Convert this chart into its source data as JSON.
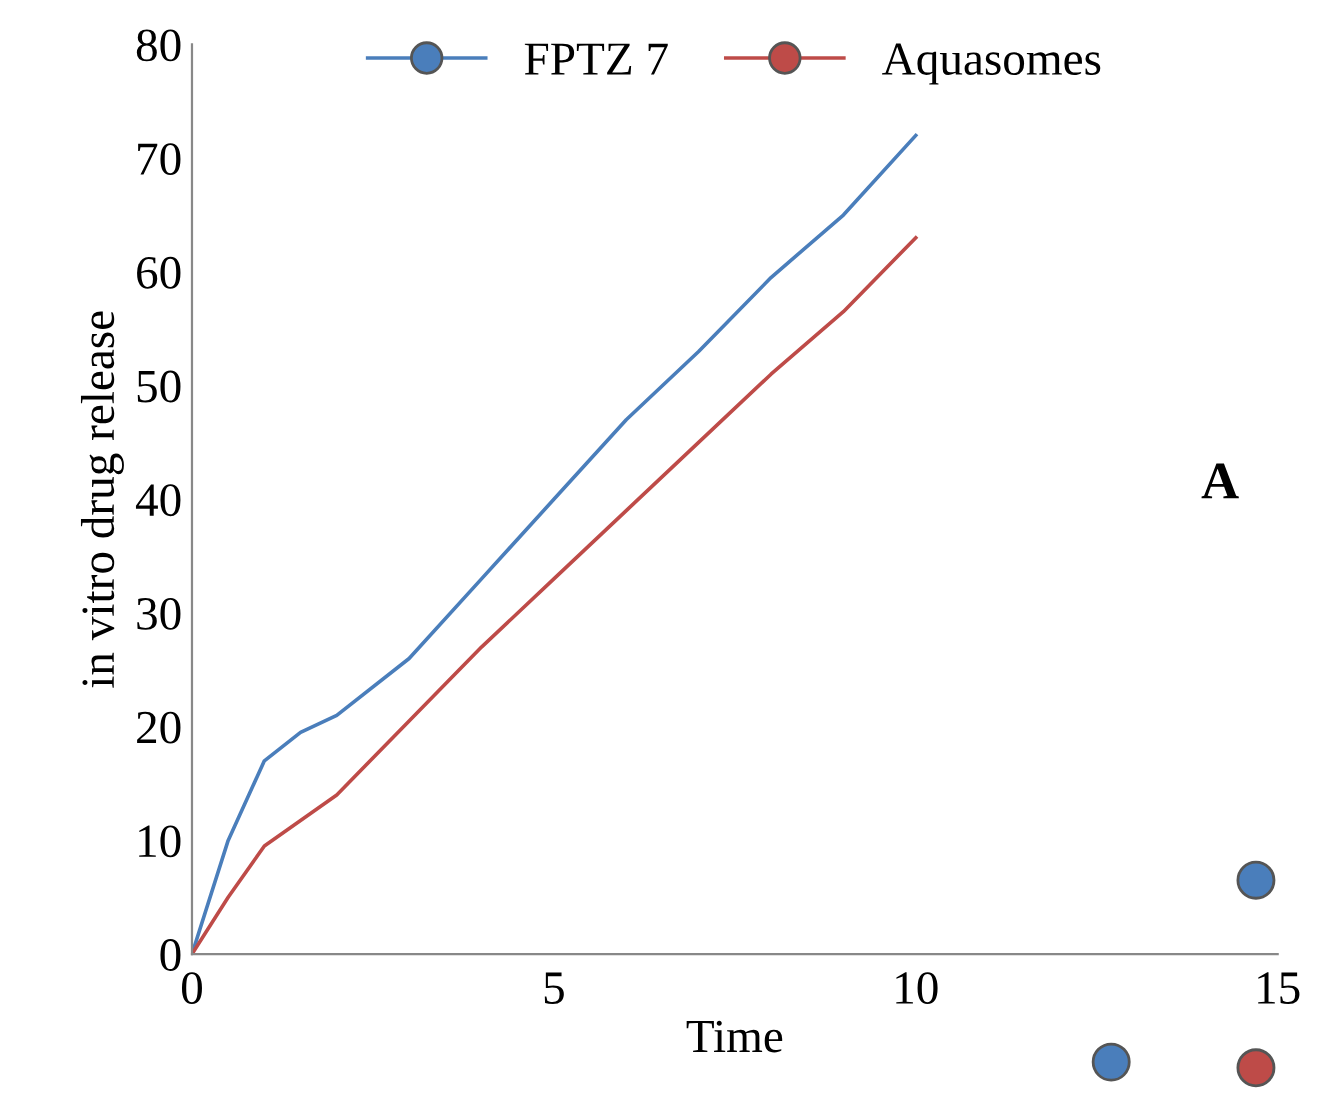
{
  "chart_data": {
    "type": "line",
    "xlabel": "Time",
    "ylabel": "in vitro drug release",
    "series": [
      {
        "name": "FPTZ 7",
        "color": "#4a7ebb",
        "x": [
          0,
          0.5,
          1,
          1.5,
          2,
          3,
          4,
          5,
          6,
          7,
          8,
          9,
          10
        ],
        "values": [
          0,
          10,
          17,
          19.5,
          21,
          26,
          33,
          40,
          47,
          53,
          59.5,
          65,
          72
        ]
      },
      {
        "name": "Aquasomes",
        "color": "#be4b48",
        "x": [
          0,
          0.5,
          1,
          2,
          3,
          4,
          5,
          6,
          7,
          8,
          9,
          10
        ],
        "values": [
          0,
          5,
          9.5,
          14,
          20.5,
          27,
          33,
          39,
          45,
          51,
          56.5,
          63
        ]
      }
    ],
    "xlim": [
      0,
      15
    ],
    "xticks": [
      0,
      5,
      10,
      15
    ],
    "ylim": [
      0,
      80
    ],
    "yticks": [
      0,
      10,
      20,
      30,
      40,
      50,
      60,
      70,
      80
    ],
    "grid": false,
    "legend": "top",
    "annotations": [
      "A"
    ]
  }
}
